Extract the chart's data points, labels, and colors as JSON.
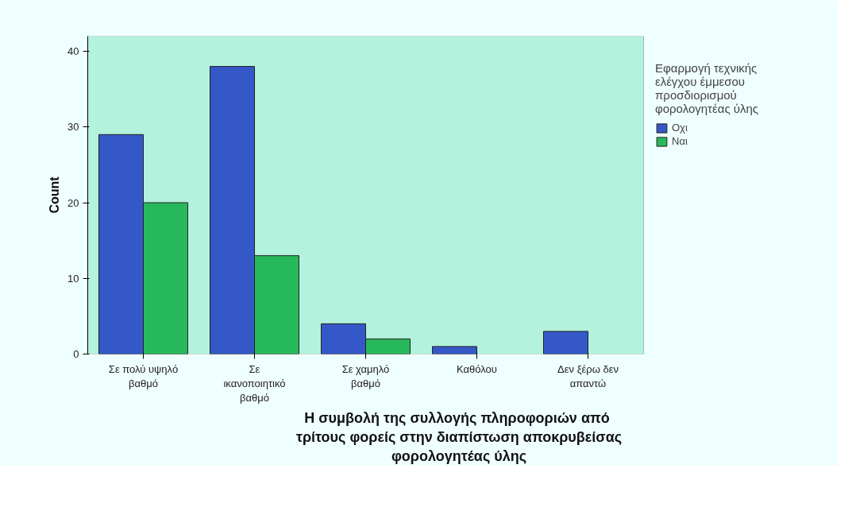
{
  "chart_data": {
    "type": "bar",
    "xlabel": "Η συμβολή της συλλογής  πληροφοριών από\nτρίτους φορείς στην διαπίστωση αποκρυβείσας\nφορολογητέας ύλης",
    "ylabel": "Count",
    "legend_title": "Εφαρμογή τεχνικής\nελέγχου έμμεσου\nπροσδιορισμού\nφορολογητέας ύλης",
    "categories": [
      "Σε πολύ υψηλό\nβαθμό",
      "Σε\nικανοποιητικό\nβαθμό",
      "Σε χαμηλό\nβαθμό",
      "Καθόλου",
      "Δεν ξέρω δεν\nαπαντώ"
    ],
    "series": [
      {
        "name": "Οχι",
        "color": "#3558c8",
        "values": [
          29,
          38,
          4,
          1,
          3
        ]
      },
      {
        "name": "Ναι",
        "color": "#28b85c",
        "values": [
          20,
          13,
          2,
          null,
          null
        ]
      }
    ],
    "ylim": [
      0,
      42
    ],
    "yticks": [
      0,
      10,
      20,
      30,
      40
    ],
    "grid": false,
    "legend": "right"
  }
}
